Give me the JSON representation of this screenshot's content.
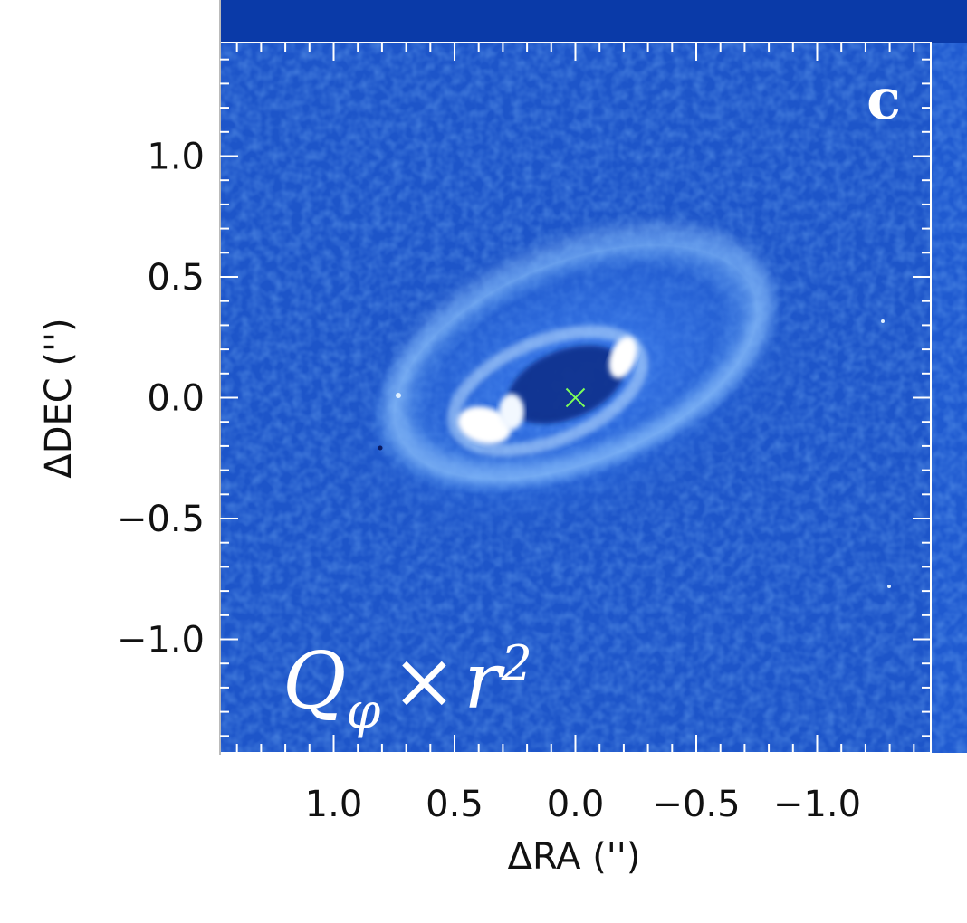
{
  "panel": {
    "letter": "c",
    "overlay": {
      "base": "Q",
      "subscript": "φ",
      "operator": "×",
      "var": "r",
      "exponent": "2"
    }
  },
  "axes": {
    "xlabel": "ΔRA ('')",
    "ylabel": "ΔDEC ('')",
    "xticks": [
      "1.0",
      "0.5",
      "0.0",
      "−0.5",
      "−1.0"
    ],
    "yticks": [
      "1.0",
      "0.5",
      "0.0",
      "−0.5",
      "−1.0"
    ]
  },
  "chart_data": {
    "type": "heatmap",
    "xlabel": "ΔRA ('')",
    "ylabel": "ΔDEC ('')",
    "x_tick_values": [
      1.0,
      0.5,
      0.0,
      -0.5,
      -1.0
    ],
    "y_tick_values": [
      1.0,
      0.5,
      0.0,
      -0.5,
      -1.0
    ],
    "xlim": [
      1.47,
      -1.47
    ],
    "ylim": [
      -1.47,
      1.47
    ],
    "center_marker": {
      "symbol": "×",
      "x": 0.0,
      "y": 0.0,
      "color": "#7dff5a"
    },
    "colormap": [
      "#0a2a8c",
      "#1f5ad0",
      "#5aa0ff",
      "#ffffff"
    ]
  }
}
